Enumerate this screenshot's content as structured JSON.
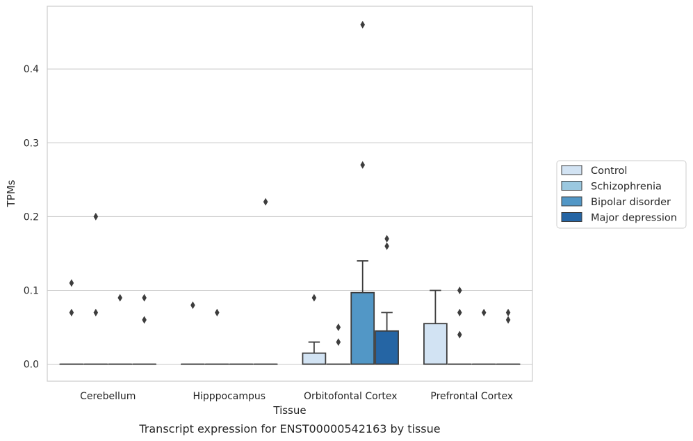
{
  "caption": "Transcript expression for ENST00000542163 by tissue",
  "chart_data": {
    "type": "boxplot",
    "xlabel": "Tissue",
    "ylabel": "TPMs",
    "ylim": [
      -0.023,
      0.485
    ],
    "yticks": [
      0.0,
      0.1,
      0.2,
      0.3,
      0.4
    ],
    "ytick_labels": [
      "0.0",
      "0.1",
      "0.2",
      "0.3",
      "0.4"
    ],
    "grid": "horizontal",
    "legend_placement": "right",
    "categories": [
      "Cerebellum",
      "Hipppocampus",
      "Orbitofontal Cortex",
      "Prefrontal Cortex"
    ],
    "series": [
      {
        "name": "Control",
        "color": "#d2e3f3",
        "boxes": [
          {
            "q1": 0,
            "median": 0,
            "q3": 0,
            "whislo": 0,
            "whishi": 0,
            "fliers": [
              0.11,
              0.07
            ]
          },
          {
            "q1": 0,
            "median": 0,
            "q3": 0,
            "whislo": 0,
            "whishi": 0,
            "fliers": [
              0.08
            ]
          },
          {
            "q1": 0,
            "median": 0,
            "q3": 0.015,
            "whislo": 0,
            "whishi": 0.03,
            "fliers": [
              0.09
            ]
          },
          {
            "q1": 0,
            "median": 0,
            "q3": 0.055,
            "whislo": 0,
            "whishi": 0.1,
            "fliers": []
          }
        ]
      },
      {
        "name": "Schizophrenia",
        "color": "#9ac8e0",
        "boxes": [
          {
            "q1": 0,
            "median": 0,
            "q3": 0,
            "whislo": 0,
            "whishi": 0,
            "fliers": [
              0.2,
              0.07
            ]
          },
          {
            "q1": 0,
            "median": 0,
            "q3": 0,
            "whislo": 0,
            "whishi": 0,
            "fliers": [
              0.07
            ]
          },
          {
            "q1": 0,
            "median": 0,
            "q3": 0,
            "whislo": 0,
            "whishi": 0,
            "fliers": [
              0.05,
              0.03
            ]
          },
          {
            "q1": 0,
            "median": 0,
            "q3": 0,
            "whislo": 0,
            "whishi": 0,
            "fliers": [
              0.1,
              0.07,
              0.04
            ]
          }
        ]
      },
      {
        "name": "Bipolar disorder",
        "color": "#5297c6",
        "boxes": [
          {
            "q1": 0,
            "median": 0,
            "q3": 0,
            "whislo": 0,
            "whishi": 0,
            "fliers": [
              0.09
            ]
          },
          {
            "q1": 0,
            "median": 0,
            "q3": 0,
            "whislo": 0,
            "whishi": 0,
            "fliers": []
          },
          {
            "q1": 0,
            "median": 0,
            "q3": 0.097,
            "whislo": 0,
            "whishi": 0.14,
            "fliers": [
              0.46,
              0.27
            ]
          },
          {
            "q1": 0,
            "median": 0,
            "q3": 0,
            "whislo": 0,
            "whishi": 0,
            "fliers": [
              0.07
            ]
          }
        ]
      },
      {
        "name": "Major depression",
        "color": "#2565a4",
        "boxes": [
          {
            "q1": 0,
            "median": 0,
            "q3": 0,
            "whislo": 0,
            "whishi": 0,
            "fliers": [
              0.09,
              0.06
            ]
          },
          {
            "q1": 0,
            "median": 0,
            "q3": 0,
            "whislo": 0,
            "whishi": 0,
            "fliers": [
              0.22
            ]
          },
          {
            "q1": 0,
            "median": 0,
            "q3": 0.045,
            "whislo": 0,
            "whishi": 0.07,
            "fliers": [
              0.17,
              0.16
            ]
          },
          {
            "q1": 0,
            "median": 0,
            "q3": 0,
            "whislo": 0,
            "whishi": 0,
            "fliers": [
              0.07,
              0.06
            ]
          }
        ]
      }
    ]
  }
}
